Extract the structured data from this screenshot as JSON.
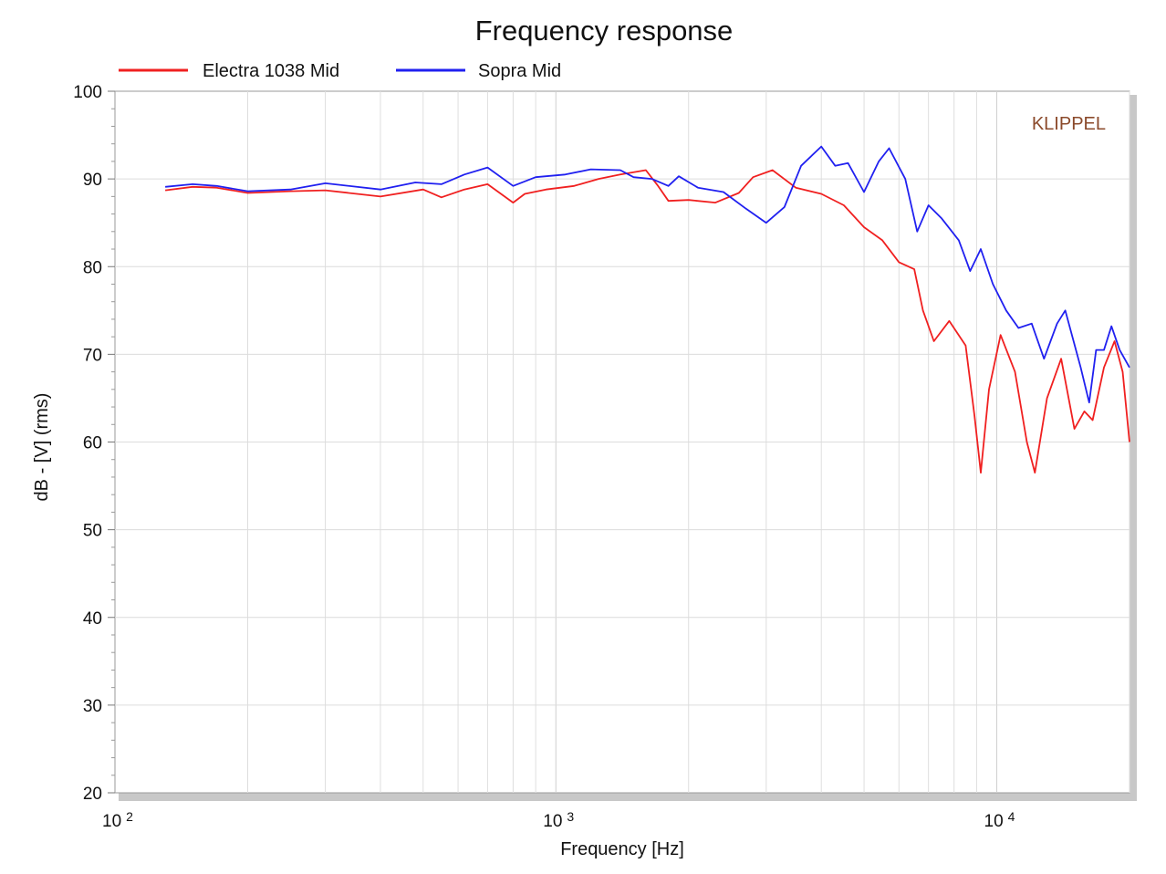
{
  "chart_data": {
    "type": "line",
    "title": "Frequency response",
    "xlabel": "Frequency [Hz]",
    "ylabel": "dB - [V]  (rms)",
    "watermark": "KLIPPEL",
    "x_scale": "log",
    "xlim": [
      100,
      20000
    ],
    "ylim": [
      20,
      100
    ],
    "grid": true,
    "legend_position": "top-left",
    "y_ticks": [
      100,
      90,
      80,
      70,
      60,
      50,
      40,
      30,
      20
    ],
    "x_ticks": [
      {
        "value": 100,
        "base": "10",
        "exp": "2"
      },
      {
        "value": 1000,
        "base": "10",
        "exp": "3"
      },
      {
        "value": 10000,
        "base": "10",
        "exp": "4"
      }
    ],
    "series": [
      {
        "name": "Electra 1038 Mid",
        "color": "#f02020",
        "points": [
          [
            130,
            88.7
          ],
          [
            150,
            89.1
          ],
          [
            170,
            89.0
          ],
          [
            200,
            88.4
          ],
          [
            250,
            88.6
          ],
          [
            300,
            88.7
          ],
          [
            400,
            88.0
          ],
          [
            500,
            88.8
          ],
          [
            550,
            87.9
          ],
          [
            620,
            88.8
          ],
          [
            700,
            89.4
          ],
          [
            800,
            87.3
          ],
          [
            850,
            88.3
          ],
          [
            950,
            88.8
          ],
          [
            1100,
            89.2
          ],
          [
            1250,
            90.0
          ],
          [
            1400,
            90.5
          ],
          [
            1600,
            91.0
          ],
          [
            1700,
            89.3
          ],
          [
            1800,
            87.5
          ],
          [
            2000,
            87.6
          ],
          [
            2300,
            87.3
          ],
          [
            2600,
            88.4
          ],
          [
            2800,
            90.2
          ],
          [
            3100,
            91.0
          ],
          [
            3500,
            89.0
          ],
          [
            4000,
            88.3
          ],
          [
            4500,
            87.0
          ],
          [
            5000,
            84.5
          ],
          [
            5500,
            83.0
          ],
          [
            6000,
            80.5
          ],
          [
            6500,
            79.7
          ],
          [
            6800,
            75.0
          ],
          [
            7200,
            71.5
          ],
          [
            7800,
            73.8
          ],
          [
            8500,
            71.0
          ],
          [
            8900,
            63.0
          ],
          [
            9200,
            56.5
          ],
          [
            9600,
            66.0
          ],
          [
            10200,
            72.2
          ],
          [
            11000,
            68.0
          ],
          [
            11700,
            60.0
          ],
          [
            12200,
            56.5
          ],
          [
            13000,
            65.0
          ],
          [
            14000,
            69.5
          ],
          [
            15000,
            61.5
          ],
          [
            15800,
            63.5
          ],
          [
            16500,
            62.5
          ],
          [
            17500,
            68.5
          ],
          [
            18500,
            71.5
          ],
          [
            19300,
            68.0
          ],
          [
            20000,
            60.0
          ]
        ]
      },
      {
        "name": "Sopra Mid",
        "color": "#2020f0",
        "points": [
          [
            130,
            89.1
          ],
          [
            150,
            89.4
          ],
          [
            170,
            89.2
          ],
          [
            200,
            88.6
          ],
          [
            250,
            88.8
          ],
          [
            300,
            89.5
          ],
          [
            400,
            88.8
          ],
          [
            480,
            89.6
          ],
          [
            550,
            89.4
          ],
          [
            620,
            90.5
          ],
          [
            700,
            91.3
          ],
          [
            800,
            89.2
          ],
          [
            900,
            90.2
          ],
          [
            1050,
            90.5
          ],
          [
            1200,
            91.1
          ],
          [
            1400,
            91.0
          ],
          [
            1500,
            90.2
          ],
          [
            1650,
            90.0
          ],
          [
            1800,
            89.2
          ],
          [
            1900,
            90.3
          ],
          [
            2100,
            89.0
          ],
          [
            2400,
            88.5
          ],
          [
            2700,
            86.6
          ],
          [
            3000,
            85.0
          ],
          [
            3300,
            86.8
          ],
          [
            3600,
            91.5
          ],
          [
            4000,
            93.7
          ],
          [
            4300,
            91.5
          ],
          [
            4600,
            91.8
          ],
          [
            5000,
            88.5
          ],
          [
            5400,
            92.0
          ],
          [
            5700,
            93.5
          ],
          [
            6200,
            90.0
          ],
          [
            6600,
            84.0
          ],
          [
            7000,
            87.0
          ],
          [
            7500,
            85.5
          ],
          [
            8200,
            83.0
          ],
          [
            8700,
            79.5
          ],
          [
            9200,
            82.0
          ],
          [
            9800,
            78.0
          ],
          [
            10500,
            75.0
          ],
          [
            11200,
            73.0
          ],
          [
            12000,
            73.5
          ],
          [
            12800,
            69.5
          ],
          [
            13700,
            73.5
          ],
          [
            14300,
            75.0
          ],
          [
            15500,
            68.5
          ],
          [
            16200,
            64.5
          ],
          [
            16800,
            70.5
          ],
          [
            17500,
            70.5
          ],
          [
            18200,
            73.2
          ],
          [
            19000,
            70.5
          ],
          [
            20000,
            68.5
          ]
        ]
      }
    ]
  }
}
